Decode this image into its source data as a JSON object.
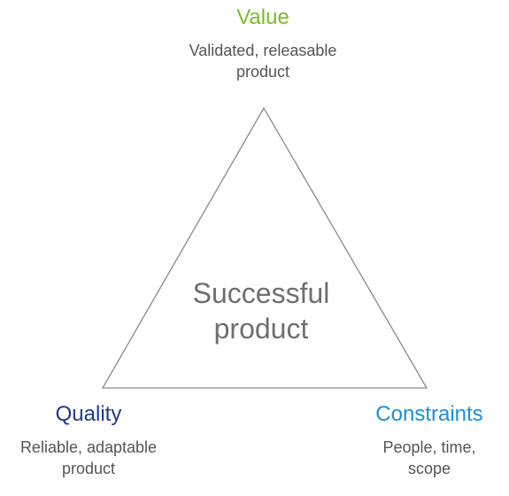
{
  "diagram": {
    "center_label": {
      "line1": "Successful",
      "line2": "product",
      "color": "#6f6f6f"
    },
    "triangle": {
      "stroke_color": "#8a8a8a"
    },
    "vertices": {
      "top": {
        "title": "Value",
        "title_color": "#7cba2d",
        "desc_line1": "Validated, releasable",
        "desc_line2": "product"
      },
      "bottom_left": {
        "title": "Quality",
        "title_color": "#1f3a8a",
        "desc_line1": "Reliable, adaptable",
        "desc_line2": "product"
      },
      "bottom_right": {
        "title": "Constraints",
        "title_color": "#1a8fd6",
        "desc_line1": "People, time,",
        "desc_line2": "scope"
      }
    }
  }
}
